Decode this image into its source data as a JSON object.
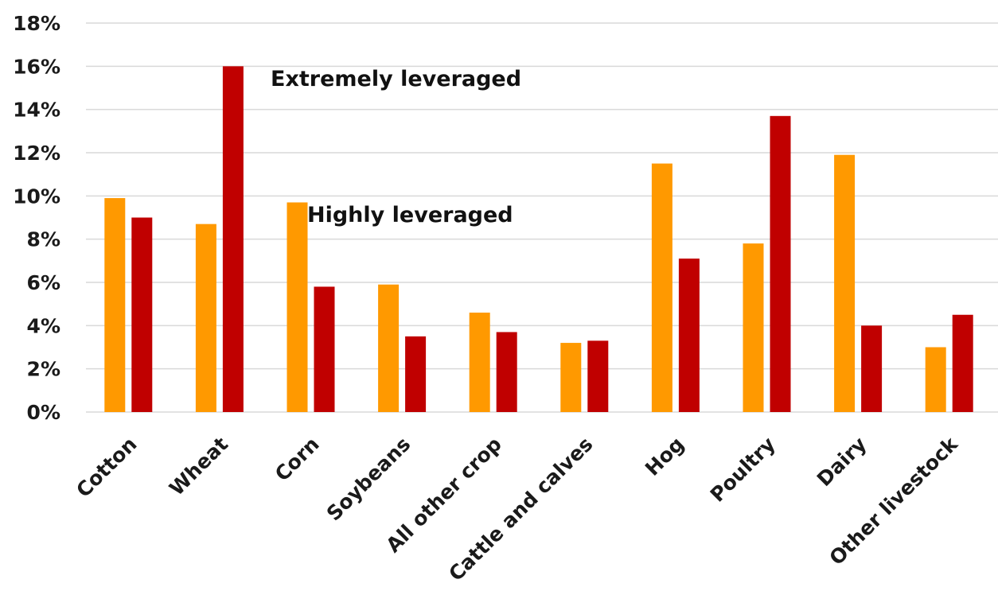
{
  "chart_data": {
    "type": "bar",
    "title": "",
    "xlabel": "",
    "ylabel": "",
    "ylim": [
      0,
      18
    ],
    "yticks": [
      "0%",
      "2%",
      "4%",
      "6%",
      "8%",
      "10%",
      "12%",
      "14%",
      "16%",
      "18%"
    ],
    "y_unit": "%",
    "grid": "horizontal",
    "legend": "none",
    "categories": [
      "Cotton",
      "Wheat",
      "Corn",
      "Soybeans",
      "All other crop",
      "Cattle and calves",
      "Hog",
      "Poultry",
      "Dairy",
      "Other livestock"
    ],
    "series": [
      {
        "color": "#FF9900",
        "values": [
          9.9,
          8.7,
          9.7,
          5.9,
          4.6,
          3.2,
          11.5,
          7.8,
          11.9,
          3.0
        ]
      },
      {
        "color": "#C00000",
        "values": [
          9.0,
          16.0,
          5.8,
          3.5,
          3.7,
          3.3,
          7.1,
          13.7,
          4.0,
          4.5
        ]
      }
    ],
    "annotations": [
      {
        "text": "Extremely leveraged"
      },
      {
        "text": "Highly leveraged"
      }
    ]
  }
}
